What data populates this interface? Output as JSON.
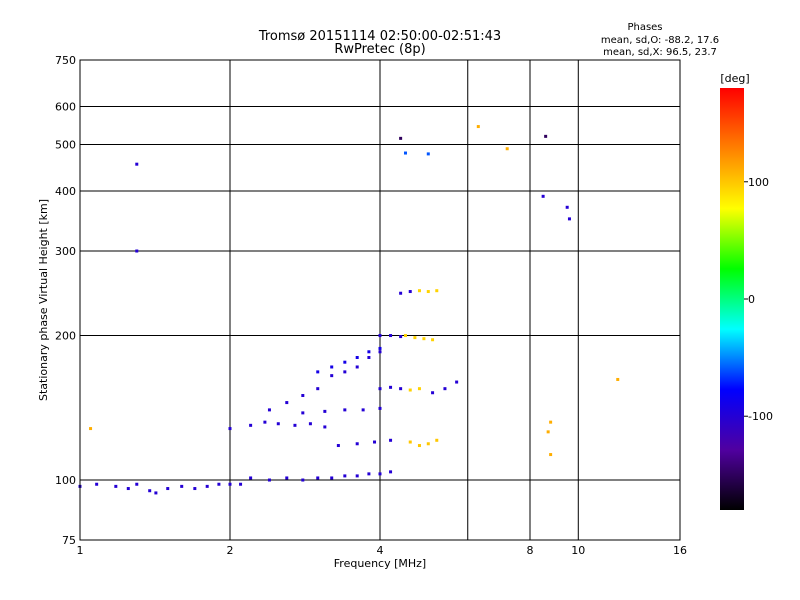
{
  "chart_data": {
    "type": "scatter",
    "title": "Tromsø 20151114 02:50:00-02:51:43",
    "subtitle": "RwPretec (8p)",
    "xlabel": "Frequency [MHz]",
    "ylabel": "Stationary phase Virtual Height [km]",
    "x_scale": "log2",
    "y_scale": "log",
    "xlim": [
      1,
      16
    ],
    "ylim": [
      75,
      750
    ],
    "x_ticks": [
      1,
      2,
      4,
      8,
      16
    ],
    "x_tick_labels": [
      "1",
      "2",
      "4",
      "8",
      "16"
    ],
    "x_minor_gridlines": [
      6,
      10
    ],
    "x_minor_labels": [
      "",
      "10"
    ],
    "y_ticks": [
      75,
      100,
      200,
      300,
      400,
      500,
      600,
      750
    ],
    "y_tick_labels": [
      "75",
      "100",
      "200",
      "300",
      "400",
      "500",
      "600",
      "750"
    ],
    "grid": true,
    "stats": {
      "header": "Phases",
      "line_o": "mean, sd,O: -88.2, 17.6",
      "line_x": "mean, sd,X:  96.5, 23.7"
    },
    "colorbar": {
      "label": "[deg]",
      "range": [
        -180,
        180
      ],
      "ticks": [
        100,
        0,
        -100
      ],
      "tick_labels": [
        "100",
        "0",
        "-100"
      ],
      "colors": [
        "#ff0000",
        "#ff8000",
        "#ffff00",
        "#00ff00",
        "#00ffff",
        "#0000ff",
        "#5000a0",
        "#000000"
      ]
    },
    "traces": [
      {
        "name": "",
        "phase": -100,
        "points": [
          [
            1.0,
            97
          ],
          [
            1.08,
            98
          ],
          [
            1.18,
            97
          ],
          [
            1.25,
            96
          ],
          [
            1.3,
            98
          ],
          [
            1.38,
            95
          ],
          [
            1.42,
            94
          ],
          [
            1.5,
            96
          ],
          [
            1.6,
            97
          ],
          [
            1.7,
            96
          ],
          [
            1.8,
            97
          ],
          [
            1.9,
            98
          ],
          [
            2.0,
            98
          ],
          [
            2.1,
            98
          ]
        ]
      },
      {
        "name": "",
        "phase": -100,
        "points": [
          [
            2.2,
            101
          ],
          [
            2.4,
            100
          ],
          [
            2.6,
            101
          ],
          [
            2.8,
            100
          ],
          [
            3.0,
            101
          ],
          [
            3.2,
            101
          ],
          [
            3.4,
            102
          ],
          [
            3.6,
            102
          ],
          [
            3.8,
            103
          ],
          [
            4.0,
            103
          ],
          [
            4.2,
            104
          ]
        ]
      },
      {
        "name": "",
        "phase": -100,
        "points": [
          [
            2.0,
            128
          ],
          [
            2.2,
            130
          ],
          [
            2.35,
            132
          ],
          [
            2.5,
            131
          ],
          [
            2.7,
            130
          ],
          [
            2.9,
            131
          ],
          [
            3.1,
            129
          ]
        ]
      },
      {
        "name": "",
        "phase": -100,
        "points": [
          [
            2.4,
            140
          ],
          [
            2.6,
            145
          ],
          [
            2.8,
            150
          ],
          [
            3.0,
            155
          ],
          [
            3.2,
            165
          ],
          [
            3.4,
            168
          ],
          [
            3.6,
            172
          ],
          [
            3.8,
            180
          ],
          [
            4.0,
            185
          ]
        ]
      },
      {
        "name": "",
        "phase": -90,
        "points": [
          [
            3.0,
            168
          ],
          [
            3.2,
            172
          ],
          [
            3.4,
            176
          ],
          [
            3.6,
            180
          ],
          [
            3.8,
            185
          ],
          [
            4.0,
            188
          ]
        ]
      },
      {
        "name": "",
        "phase": -100,
        "points": [
          [
            4.0,
            200
          ],
          [
            4.2,
            200
          ],
          [
            4.4,
            199
          ]
        ]
      },
      {
        "name": "",
        "phase": 95,
        "points": [
          [
            4.5,
            200
          ],
          [
            4.7,
            198
          ],
          [
            4.9,
            197
          ],
          [
            5.1,
            196
          ]
        ]
      },
      {
        "name": "",
        "phase": -100,
        "points": [
          [
            4.4,
            245
          ],
          [
            4.6,
            247
          ]
        ]
      },
      {
        "name": "",
        "phase": 95,
        "points": [
          [
            4.8,
            248
          ],
          [
            5.0,
            247
          ],
          [
            5.2,
            248
          ]
        ]
      },
      {
        "name": "",
        "phase": -100,
        "points": [
          [
            4.0,
            155
          ],
          [
            4.2,
            156
          ],
          [
            4.4,
            155
          ]
        ]
      },
      {
        "name": "",
        "phase": 95,
        "points": [
          [
            4.6,
            154
          ],
          [
            4.8,
            155
          ]
        ]
      },
      {
        "name": "",
        "phase": -100,
        "points": [
          [
            5.1,
            152
          ],
          [
            5.4,
            155
          ],
          [
            5.7,
            160
          ]
        ]
      },
      {
        "name": "",
        "phase": -100,
        "points": [
          [
            3.3,
            118
          ],
          [
            3.6,
            119
          ],
          [
            3.9,
            120
          ],
          [
            4.2,
            121
          ]
        ]
      },
      {
        "name": "",
        "phase": -100,
        "points": [
          [
            2.8,
            138
          ],
          [
            3.1,
            139
          ],
          [
            3.4,
            140
          ],
          [
            3.7,
            140
          ],
          [
            4.0,
            141
          ]
        ]
      },
      {
        "name": "",
        "phase": 100,
        "points": [
          [
            4.6,
            120
          ],
          [
            4.8,
            118
          ],
          [
            5.0,
            119
          ],
          [
            5.2,
            121
          ]
        ]
      },
      {
        "name": "",
        "phase": -100,
        "points": [
          [
            1.3,
            300
          ],
          [
            8.5,
            390
          ],
          [
            9.5,
            370
          ],
          [
            9.6,
            350
          ],
          [
            1.3,
            455
          ]
        ]
      },
      {
        "name": "",
        "phase": -150,
        "points": [
          [
            4.4,
            515
          ],
          [
            8.6,
            520
          ]
        ]
      },
      {
        "name": "",
        "phase": -60,
        "points": [
          [
            4.5,
            480
          ],
          [
            5.0,
            478
          ]
        ]
      },
      {
        "name": "",
        "phase": 110,
        "points": [
          [
            6.3,
            545
          ],
          [
            7.2,
            490
          ],
          [
            12.0,
            162
          ],
          [
            8.8,
            132
          ],
          [
            8.7,
            126
          ],
          [
            8.8,
            113
          ],
          [
            1.05,
            128
          ]
        ]
      }
    ]
  }
}
